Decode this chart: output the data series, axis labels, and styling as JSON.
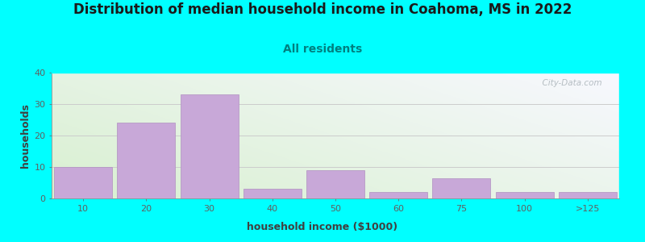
{
  "title": "Distribution of median household income in Coahoma, MS in 2022",
  "subtitle": "All residents",
  "xlabel": "household income ($1000)",
  "ylabel": "households",
  "background_color": "#00FFFF",
  "plot_bg_color_topleft": "#d8f0d0",
  "plot_bg_color_bottomright": "#f0f0ff",
  "bar_color": "#c8a8d8",
  "bar_edge_color": "#b090c0",
  "categories": [
    "10",
    "20",
    "30",
    "40",
    "50",
    "60",
    "75",
    "100",
    ">125"
  ],
  "values": [
    10,
    24,
    33,
    3,
    9,
    2,
    6.5,
    2,
    2
  ],
  "ylim": [
    0,
    40
  ],
  "yticks": [
    0,
    10,
    20,
    30,
    40
  ],
  "grid_color": "#cccccc",
  "watermark_text": "  City-Data.com",
  "title_fontsize": 12,
  "subtitle_fontsize": 10,
  "axis_label_fontsize": 9,
  "tick_fontsize": 8,
  "title_color": "#1a1a1a",
  "subtitle_color": "#008080",
  "ylabel_color": "#404040",
  "xlabel_color": "#404040"
}
